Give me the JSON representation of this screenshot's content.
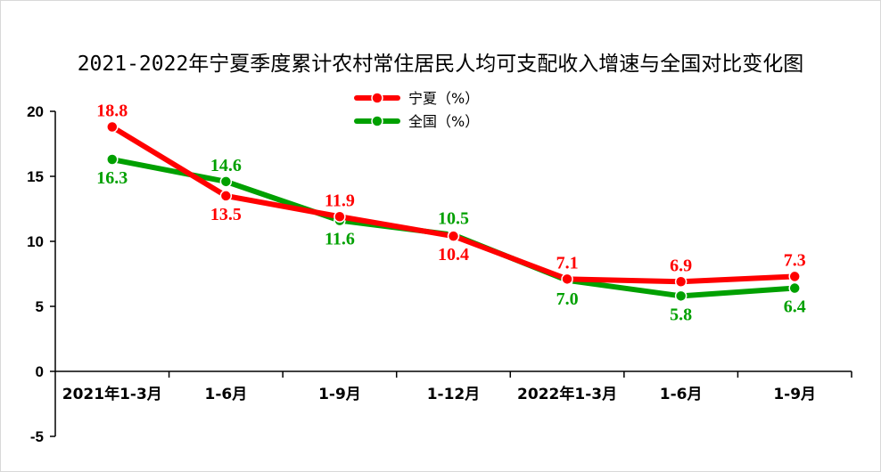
{
  "chart_data": {
    "type": "line",
    "title": "2021-2022年宁夏季度累计农村常住居民人均可支配收入增速与全国对比变化图",
    "categories": [
      "2021年1-3月",
      "1-6月",
      "1-9月",
      "1-12月",
      "2022年1-3月",
      "1-6月",
      "1-9月"
    ],
    "ylim": [
      -5,
      20
    ],
    "yticks": [
      -5,
      0,
      5,
      10,
      15,
      20
    ],
    "grid": false,
    "legend_position": "top-center",
    "series": [
      {
        "name": "宁夏（%）",
        "color": "#ff0000",
        "values": [
          18.8,
          13.5,
          11.9,
          10.4,
          7.1,
          6.9,
          7.3
        ],
        "label_side": [
          "above",
          "below",
          "above",
          "below",
          "above",
          "above",
          "above"
        ]
      },
      {
        "name": "全国（%）",
        "color": "#00a000",
        "values": [
          16.3,
          14.6,
          11.6,
          10.5,
          7.0,
          5.8,
          6.4
        ],
        "label_side": [
          "below",
          "above",
          "below",
          "above",
          "below",
          "below",
          "below"
        ]
      }
    ]
  }
}
